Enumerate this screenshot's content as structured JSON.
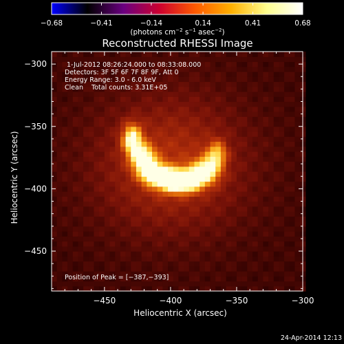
{
  "chart_data": {
    "type": "heatmap",
    "title": "Reconstructed RHESSI Image",
    "xlabel": "Heliocentric X (arcsec)",
    "ylabel": "Heliocentric Y (arcsec)",
    "xlim": [
      -490,
      -300
    ],
    "ylim": [
      -482,
      -290
    ],
    "xticks": [
      {
        "value": -450,
        "label": "−450"
      },
      {
        "value": -400,
        "label": "−400"
      },
      {
        "value": -350,
        "label": "−350"
      },
      {
        "value": -300,
        "label": "−300"
      }
    ],
    "yticks": [
      {
        "value": -300,
        "label": "−300"
      },
      {
        "value": -350,
        "label": "−350"
      },
      {
        "value": -400,
        "label": "−400"
      },
      {
        "value": -450,
        "label": "−450"
      }
    ],
    "colorbar": {
      "min": -0.68,
      "max": 0.68,
      "ticks": [
        {
          "value": -0.68,
          "label": "−0.68"
        },
        {
          "value": -0.41,
          "label": "−0.41"
        },
        {
          "value": -0.14,
          "label": "−0.14"
        },
        {
          "value": 0.14,
          "label": "0.14"
        },
        {
          "value": 0.41,
          "label": "0.41"
        },
        {
          "value": 0.68,
          "label": "0.68"
        }
      ],
      "units_prefix": "(photons cm",
      "units_exp1": "−2",
      "units_mid": " s",
      "units_exp2": "−1",
      "units_mid2": " asec",
      "units_exp3": "−2",
      "units_suffix": ")",
      "stops": [
        "#0000ff",
        "#000000",
        "#6a0080",
        "#cc0030",
        "#ff5a00",
        "#ffb000",
        "#ffff90",
        "#ffffff"
      ]
    },
    "annotations": [
      "1-Jul-2012 08:26:24.000 to 08:33:08.000",
      "Detectors: 3F 5F 6F 7F 8F 9F, Att 0",
      "Energy Range: 3.0 - 6.0 keV",
      "Clean    Total counts: 3.31E+05"
    ],
    "peak_label": "Position of Peak = [−387,−393]",
    "peak": [
      -387,
      -393
    ],
    "sources": [
      {
        "x": -429,
        "y": -360,
        "amp": 0.9,
        "sx": 5,
        "sy": 8
      },
      {
        "x": -421,
        "y": -375,
        "amp": 0.95,
        "sx": 6,
        "sy": 7
      },
      {
        "x": -413,
        "y": -387,
        "amp": 1.0,
        "sx": 7,
        "sy": 6
      },
      {
        "x": -400,
        "y": -393,
        "amp": 1.0,
        "sx": 8,
        "sy": 6
      },
      {
        "x": -387,
        "y": -393,
        "amp": 1.05,
        "sx": 8,
        "sy": 6
      },
      {
        "x": -373,
        "y": -385,
        "amp": 0.85,
        "sx": 7,
        "sy": 7
      },
      {
        "x": -365,
        "y": -372,
        "amp": 0.6,
        "sx": 5,
        "sy": 7
      }
    ],
    "halo": {
      "x": -400,
      "y": -380,
      "amp": 0.35,
      "sx": 40,
      "sy": 38
    },
    "background_level": 0.22
  },
  "footer": {
    "timestamp": "24-Apr-2014 12:13"
  }
}
